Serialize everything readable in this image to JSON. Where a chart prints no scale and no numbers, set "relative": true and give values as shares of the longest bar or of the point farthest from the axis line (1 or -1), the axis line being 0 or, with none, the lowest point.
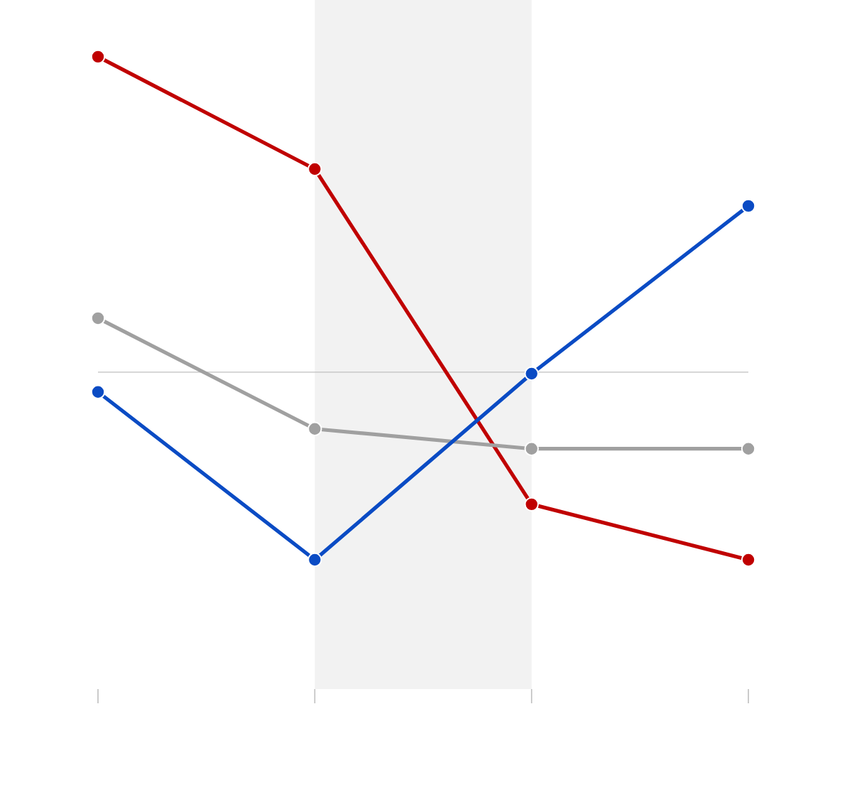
{
  "chart_data": {
    "type": "line",
    "relative": true,
    "categories": [
      null,
      null,
      null,
      null
    ],
    "marker": "circle",
    "line_style": "solid",
    "series": [
      {
        "color": "#c00000",
        "values": [
          1,
          0.644,
          -0.419,
          -0.595
        ]
      },
      {
        "color": "#a0a0a0",
        "values": [
          0.171,
          -0.18,
          -0.243,
          -0.243
        ]
      },
      {
        "color": "#0a4bc4",
        "values": [
          -0.063,
          -0.595,
          -0.005,
          0.527
        ]
      }
    ]
  }
}
